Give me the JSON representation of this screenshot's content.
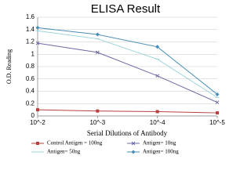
{
  "chart_data": {
    "type": "line",
    "title": "ELISA Result",
    "y_label": "O.D. Reading",
    "x_label": "Serial Dilutions  of Antibody",
    "categories": [
      "10^-2",
      "10^-3",
      "10^-4",
      "10^-5"
    ],
    "series": [
      {
        "name": "Control Antigen = 100ng",
        "color": "#b8413e",
        "values": [
          0.1,
          0.08,
          0.07,
          0.05
        ]
      },
      {
        "name": "Antigen= 10ng",
        "color": "#6d6aa6",
        "values": [
          1.18,
          1.03,
          0.65,
          0.22
        ]
      },
      {
        "name": "Antigen= 50ng",
        "color": "#9ed3da",
        "values": [
          1.38,
          1.25,
          0.92,
          0.3
        ]
      },
      {
        "name": "Antigen= 100ng",
        "color": "#4a8db6",
        "values": [
          1.43,
          1.32,
          1.12,
          0.35
        ]
      }
    ],
    "ylim": [
      0,
      1.6
    ],
    "yticks": [
      0,
      0.2,
      0.4,
      0.6,
      0.8,
      1,
      1.2,
      1.4,
      1.6
    ],
    "grid": true
  }
}
